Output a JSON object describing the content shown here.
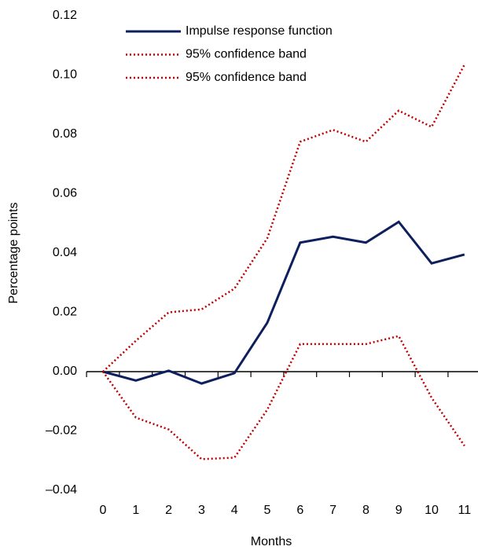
{
  "chart_data": {
    "type": "line",
    "x_label": "Months",
    "y_label": "Percentage points",
    "categories": [
      "0",
      "1",
      "2",
      "3",
      "4",
      "5",
      "6",
      "7",
      "8",
      "9",
      "10",
      "11"
    ],
    "series": [
      {
        "name": "Impulse response function",
        "color": "#0d1f5c",
        "style": "solid",
        "values": [
          0,
          -0.003,
          0.0003,
          -0.004,
          -0.0005,
          0.0165,
          0.0435,
          0.0455,
          0.0435,
          0.0505,
          0.0365,
          0.0395
        ]
      },
      {
        "name": "95% confidence band",
        "color": "#c00000",
        "style": "dotted",
        "values": [
          0,
          0.0104,
          0.02,
          0.021,
          0.028,
          0.045,
          0.0775,
          0.0815,
          0.0775,
          0.088,
          0.0825,
          0.1035
        ]
      },
      {
        "name": "95% confidence band",
        "color": "#c00000",
        "style": "dotted",
        "values": [
          0,
          -0.0155,
          -0.0195,
          -0.0295,
          -0.029,
          -0.0128,
          0.0093,
          0.0093,
          0.0093,
          0.012,
          -0.0088,
          -0.025
        ]
      }
    ],
    "ylim": [
      -0.04,
      0.12
    ],
    "yticks": [
      {
        "value": -0.04,
        "label": "–0.04"
      },
      {
        "value": -0.02,
        "label": "–0.02"
      },
      {
        "value": 0,
        "label": "0.00"
      },
      0.02,
      0.04,
      0.06,
      0.08,
      {
        "value": 0.1,
        "label": "0.10"
      },
      0.12
    ],
    "grid": false,
    "legend": "top"
  }
}
